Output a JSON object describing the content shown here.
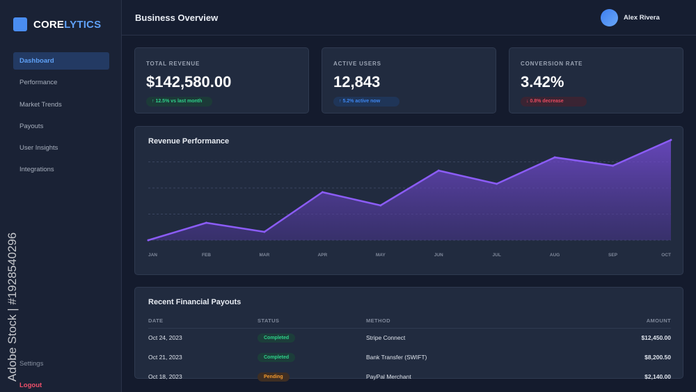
{
  "brand": {
    "part1": "CORE",
    "part2": "LYTICS"
  },
  "sidebar": {
    "items": [
      {
        "label": "Dashboard"
      },
      {
        "label": "Performance"
      },
      {
        "label": "Market Trends"
      },
      {
        "label": "Payouts"
      },
      {
        "label": "User Insights"
      },
      {
        "label": "Integrations"
      }
    ],
    "settings": "Settings",
    "logout": "Logout"
  },
  "header": {
    "title": "Business Overview",
    "user": "Alex Rivera"
  },
  "kpis": [
    {
      "label": "TOTAL REVENUE",
      "value": "$142,580.00",
      "delta": "↑ 12.5% vs last month",
      "color": "#2ed08a",
      "bg": "#1c3a38"
    },
    {
      "label": "ACTIVE USERS",
      "value": "12,843",
      "delta": "↑ 5.2% active now",
      "color": "#3d86f0",
      "bg": "#1f3558"
    },
    {
      "label": "CONVERSION RATE",
      "value": "3.42%",
      "delta": "↓ 0.8% decrease",
      "color": "#e84a5f",
      "bg": "#3a2433"
    }
  ],
  "chart_data": {
    "type": "area",
    "title": "Revenue Performance",
    "categories": [
      "JAN",
      "FEB",
      "MAR",
      "APR",
      "MAY",
      "JUN",
      "JUL",
      "AUG",
      "SEP",
      "OCT"
    ],
    "values": [
      0,
      25,
      12,
      69,
      50,
      100,
      81,
      119,
      107,
      144
    ],
    "ylim": [
      0,
      150
    ],
    "grid": true,
    "color": "#8b5cf6"
  },
  "payouts": {
    "title": "Recent Financial Payouts",
    "headers": [
      "DATE",
      "STATUS",
      "METHOD",
      "AMOUNT"
    ],
    "rows": [
      {
        "date": "Oct 24, 2023",
        "status": "Completed",
        "method": "Stripe Connect",
        "amount": "$12,450.00"
      },
      {
        "date": "Oct 21, 2023",
        "status": "Completed",
        "method": "Bank Transfer (SWIFT)",
        "amount": "$8,200.50"
      },
      {
        "date": "Oct 18, 2023",
        "status": "Pending",
        "method": "PayPal Merchant",
        "amount": "$2,140.00"
      }
    ]
  },
  "watermark": "Adobe Stock | #1928540296"
}
